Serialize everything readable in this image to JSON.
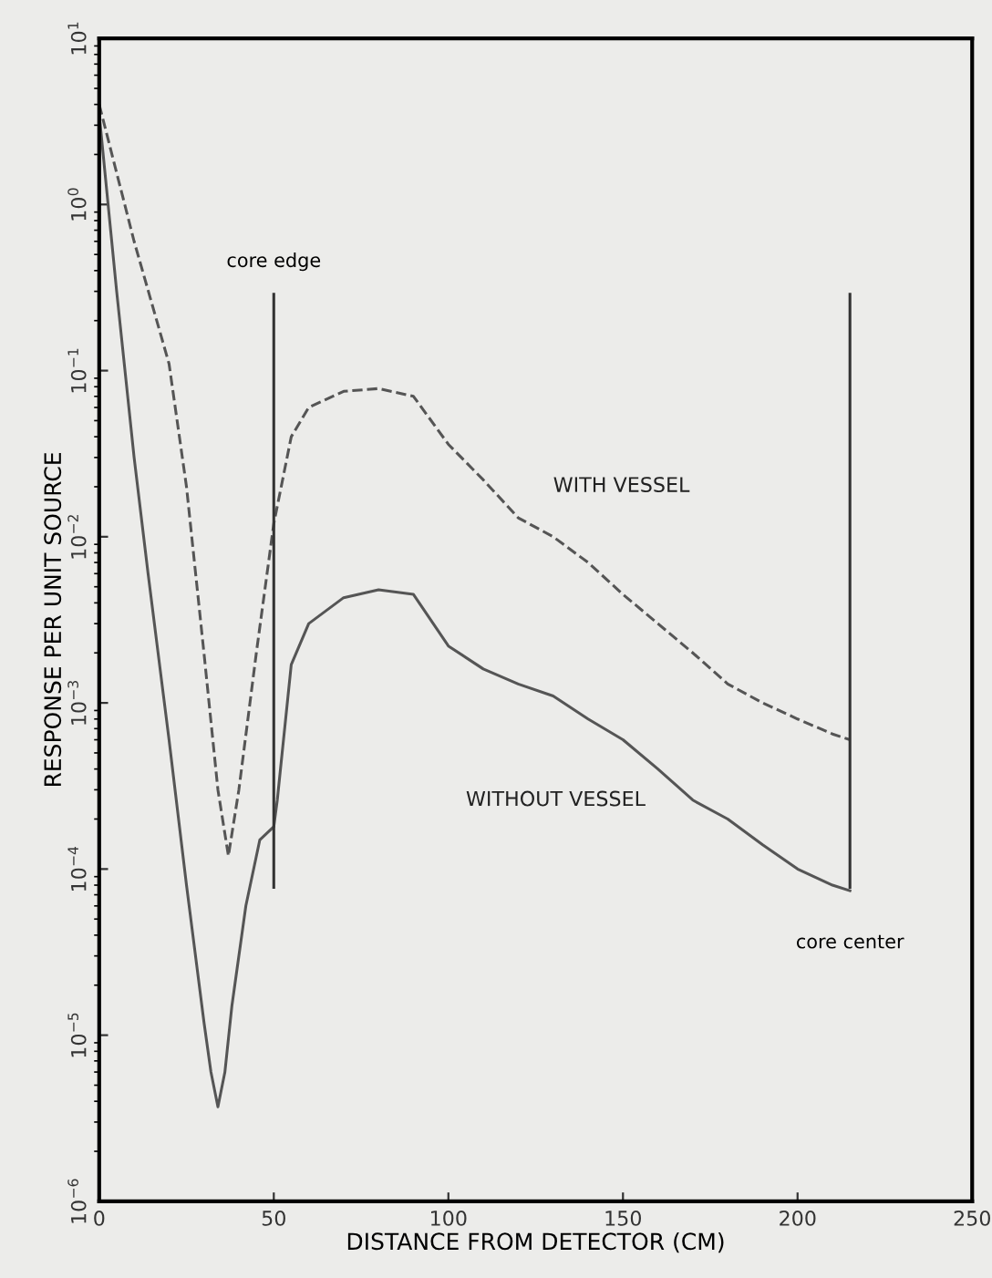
{
  "chart_data": {
    "type": "line",
    "xlabel": "DISTANCE FROM DETECTOR (CM)",
    "ylabel": "RESPONSE PER UNIT SOURCE",
    "log": "y",
    "xlim": [
      0,
      250
    ],
    "xticks": [
      0,
      50,
      100,
      150,
      200,
      250
    ],
    "ylim": [
      1e-06,
      10
    ],
    "yticks": [
      {
        "value": 10,
        "label": "10$^{1}$"
      },
      {
        "value": 1,
        "label": "10$^{0}$"
      },
      {
        "value": 0.1,
        "label": "10$^{−1}$"
      },
      {
        "value": 0.01,
        "label": "10$^{−2}$"
      },
      {
        "value": 0.001,
        "label": "10$^{−3}$"
      },
      {
        "value": 0.0001,
        "label": "10$^{−4}$"
      },
      {
        "value": 1e-05,
        "label": "10$^{−5}$"
      },
      {
        "value": 1e-06,
        "label": "10$^{−6}$"
      }
    ],
    "grid": false,
    "legend": false,
    "marker": "none",
    "series": [
      {
        "name": "WITH VESSEL",
        "color": "#555555",
        "line_style": "dashed",
        "x": [
          0,
          10,
          20,
          25,
          30,
          34,
          37,
          40,
          45,
          50,
          55,
          60,
          70,
          80,
          90,
          100,
          110,
          120,
          130,
          140,
          150,
          160,
          170,
          180,
          190,
          200,
          210,
          215
        ],
        "values": [
          4,
          0.6,
          0.11,
          0.02,
          0.002,
          0.0003,
          0.00012,
          0.0003,
          0.002,
          0.012,
          0.04,
          0.06,
          0.075,
          0.078,
          0.07,
          0.036,
          0.022,
          0.013,
          0.01,
          0.007,
          0.0045,
          0.003,
          0.002,
          0.0013,
          0.001,
          0.0008,
          0.00065,
          0.0006
        ]
      },
      {
        "name": "WITHOUT VESSEL",
        "color": "#555555",
        "line_style": "solid",
        "x": [
          0,
          5,
          10,
          14,
          20,
          25,
          30,
          32,
          34,
          36,
          38,
          42,
          46,
          50,
          51,
          55,
          60,
          70,
          80,
          90,
          100,
          110,
          120,
          130,
          140,
          150,
          160,
          170,
          180,
          190,
          200,
          210,
          215
        ],
        "values": [
          3.5,
          0.3,
          0.03,
          0.006,
          0.0006,
          8e-05,
          1.2e-05,
          6e-06,
          3.7e-06,
          6e-06,
          1.5e-05,
          6e-05,
          0.00015,
          0.00018,
          0.00026,
          0.0017,
          0.003,
          0.0043,
          0.0048,
          0.0045,
          0.0022,
          0.0016,
          0.0013,
          0.0011,
          0.0008,
          0.0006,
          0.0004,
          0.00026,
          0.0002,
          0.00014,
          0.0001,
          8e-05,
          7.4e-05
        ]
      }
    ],
    "ref_lines": [
      {
        "axis": "x",
        "value": 50,
        "label": "core edge",
        "color": "#333333"
      },
      {
        "axis": "x",
        "value": 215,
        "label": "core center",
        "color": "#333333"
      }
    ]
  }
}
